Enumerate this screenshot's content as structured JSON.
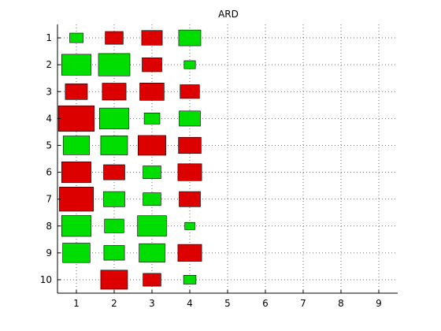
{
  "chart_data": {
    "type": "hinton",
    "title": "ARD",
    "xlabel": "",
    "ylabel": "",
    "x_ticks": [
      "1",
      "2",
      "3",
      "4",
      "5",
      "6",
      "7",
      "8",
      "9"
    ],
    "y_ticks": [
      "1",
      "2",
      "3",
      "4",
      "5",
      "6",
      "7",
      "8",
      "9",
      "10"
    ],
    "xlim": [
      0.5,
      9.5
    ],
    "ylim": [
      0.5,
      10.5
    ],
    "y_reversed": true,
    "grid": true,
    "colors": {
      "positive": "#00dd00",
      "negative": "#dd0000"
    },
    "cells": [
      {
        "x": 1,
        "y": 1,
        "sign": "positive",
        "magnitude": 0.14
      },
      {
        "x": 2,
        "y": 1,
        "sign": "negative",
        "magnitude": 0.25
      },
      {
        "x": 3,
        "y": 1,
        "sign": "negative",
        "magnitude": 0.33
      },
      {
        "x": 4,
        "y": 1,
        "sign": "positive",
        "magnitude": 0.38
      },
      {
        "x": 1,
        "y": 2,
        "sign": "positive",
        "magnitude": 0.67
      },
      {
        "x": 2,
        "y": 2,
        "sign": "positive",
        "magnitude": 0.77
      },
      {
        "x": 3,
        "y": 2,
        "sign": "negative",
        "magnitude": 0.3
      },
      {
        "x": 4,
        "y": 2,
        "sign": "positive",
        "magnitude": 0.1
      },
      {
        "x": 1,
        "y": 3,
        "sign": "negative",
        "magnitude": 0.38
      },
      {
        "x": 2,
        "y": 3,
        "sign": "negative",
        "magnitude": 0.44
      },
      {
        "x": 3,
        "y": 3,
        "sign": "negative",
        "magnitude": 0.46
      },
      {
        "x": 4,
        "y": 3,
        "sign": "negative",
        "magnitude": 0.29
      },
      {
        "x": 1,
        "y": 4,
        "sign": "negative",
        "magnitude": 1.0
      },
      {
        "x": 2,
        "y": 4,
        "sign": "positive",
        "magnitude": 0.67
      },
      {
        "x": 3,
        "y": 4,
        "sign": "positive",
        "magnitude": 0.19
      },
      {
        "x": 4,
        "y": 4,
        "sign": "positive",
        "magnitude": 0.35
      },
      {
        "x": 1,
        "y": 5,
        "sign": "positive",
        "magnitude": 0.54
      },
      {
        "x": 2,
        "y": 5,
        "sign": "positive",
        "magnitude": 0.56
      },
      {
        "x": 3,
        "y": 5,
        "sign": "negative",
        "magnitude": 0.6
      },
      {
        "x": 4,
        "y": 5,
        "sign": "negative",
        "magnitude": 0.4
      },
      {
        "x": 1,
        "y": 6,
        "sign": "negative",
        "magnitude": 0.67
      },
      {
        "x": 2,
        "y": 6,
        "sign": "negative",
        "magnitude": 0.35
      },
      {
        "x": 3,
        "y": 6,
        "sign": "positive",
        "magnitude": 0.25
      },
      {
        "x": 4,
        "y": 6,
        "sign": "negative",
        "magnitude": 0.44
      },
      {
        "x": 1,
        "y": 7,
        "sign": "negative",
        "magnitude": 0.9
      },
      {
        "x": 2,
        "y": 7,
        "sign": "positive",
        "magnitude": 0.35
      },
      {
        "x": 3,
        "y": 7,
        "sign": "positive",
        "magnitude": 0.25
      },
      {
        "x": 4,
        "y": 7,
        "sign": "negative",
        "magnitude": 0.35
      },
      {
        "x": 1,
        "y": 8,
        "sign": "positive",
        "magnitude": 0.67
      },
      {
        "x": 2,
        "y": 8,
        "sign": "positive",
        "magnitude": 0.29
      },
      {
        "x": 3,
        "y": 8,
        "sign": "positive",
        "magnitude": 0.65
      },
      {
        "x": 4,
        "y": 8,
        "sign": "positive",
        "magnitude": 0.08
      },
      {
        "x": 1,
        "y": 9,
        "sign": "positive",
        "magnitude": 0.58
      },
      {
        "x": 2,
        "y": 9,
        "sign": "positive",
        "magnitude": 0.33
      },
      {
        "x": 3,
        "y": 9,
        "sign": "positive",
        "magnitude": 0.52
      },
      {
        "x": 4,
        "y": 9,
        "sign": "negative",
        "magnitude": 0.44
      },
      {
        "x": 2,
        "y": 10,
        "sign": "negative",
        "magnitude": 0.56
      },
      {
        "x": 3,
        "y": 10,
        "sign": "negative",
        "magnitude": 0.25
      },
      {
        "x": 4,
        "y": 10,
        "sign": "positive",
        "magnitude": 0.12
      }
    ]
  }
}
